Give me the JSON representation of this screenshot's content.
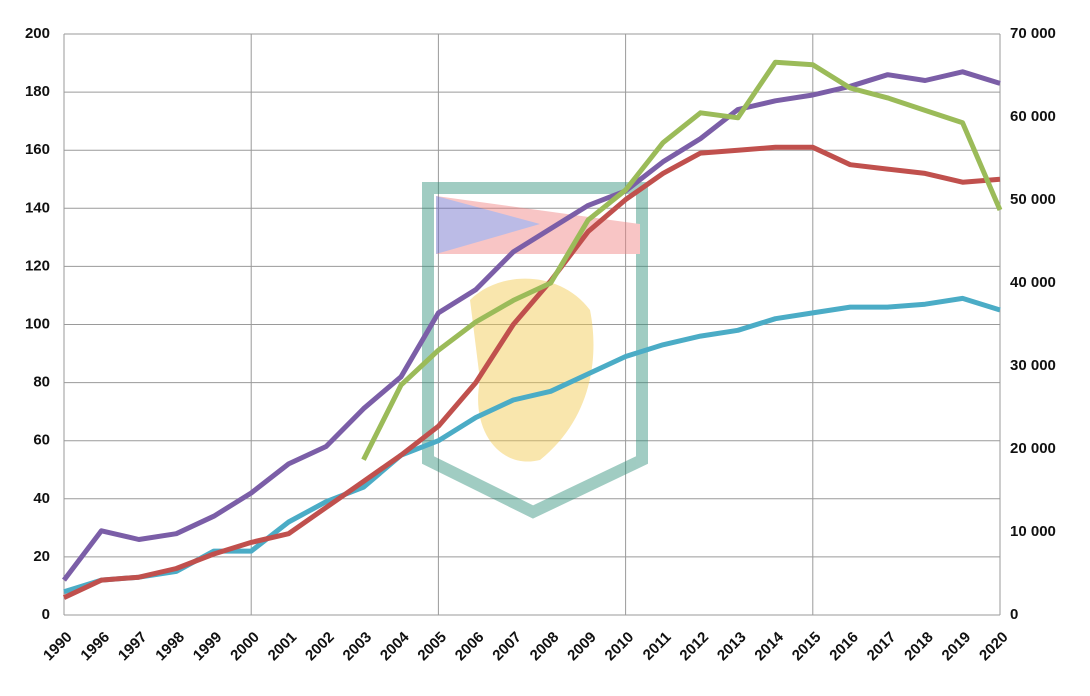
{
  "chart_data": {
    "type": "line",
    "categories": [
      "1990",
      "1996",
      "1997",
      "1998",
      "1999",
      "2000",
      "2001",
      "2002",
      "2003",
      "2004",
      "2005",
      "2006",
      "2007",
      "2008",
      "2009",
      "2010",
      "2011",
      "2012",
      "2013",
      "2014",
      "2015",
      "2016",
      "2017",
      "2018",
      "2019",
      "2020"
    ],
    "series": [
      {
        "color": "#7b5ea7",
        "values": [
          12,
          29,
          26,
          28,
          34,
          42,
          52,
          58,
          71,
          82,
          104,
          112,
          125,
          133,
          141,
          146,
          156,
          164,
          174,
          177,
          179,
          182,
          186,
          184,
          187,
          183
        ]
      },
      {
        "color": "#4bacc6",
        "values": [
          8,
          12,
          13,
          15,
          22,
          22,
          32,
          39,
          44,
          55,
          60,
          68,
          74,
          77,
          83,
          89,
          93,
          96,
          98,
          102,
          104,
          106,
          106,
          107,
          109,
          105
        ]
      },
      {
        "color": "#c0504d",
        "values": [
          6,
          12,
          13,
          16,
          21,
          25,
          28,
          37,
          46,
          55,
          65,
          80,
          100,
          115,
          132,
          143,
          152,
          159,
          160,
          161,
          161,
          155,
          153.5,
          152,
          149,
          150
        ]
      },
      {
        "color": "#9bbb59",
        "axis": "y2",
        "values": [
          null,
          null,
          null,
          null,
          null,
          null,
          null,
          null,
          18700,
          27700,
          31900,
          35300,
          37900,
          40000,
          47600,
          51200,
          56900,
          60500,
          59900,
          66600,
          66300,
          63500,
          62300,
          60800,
          59300,
          48800
        ]
      }
    ],
    "ylim": [
      0,
      200
    ],
    "yticks": [
      0,
      20,
      40,
      60,
      80,
      100,
      120,
      140,
      160,
      180,
      200
    ],
    "y2lim": [
      0,
      70000
    ],
    "y2ticks": [
      0,
      {
        "value": 10000,
        "label": "10 000"
      },
      {
        "value": 20000,
        "label": "20 000"
      },
      {
        "value": 30000,
        "label": "30 000"
      },
      {
        "value": 40000,
        "label": "40 000"
      },
      {
        "value": 50000,
        "label": "50 000"
      },
      {
        "value": 60000,
        "label": "60 000"
      },
      {
        "value": 70000,
        "label": "70 000"
      }
    ],
    "grid": true
  }
}
